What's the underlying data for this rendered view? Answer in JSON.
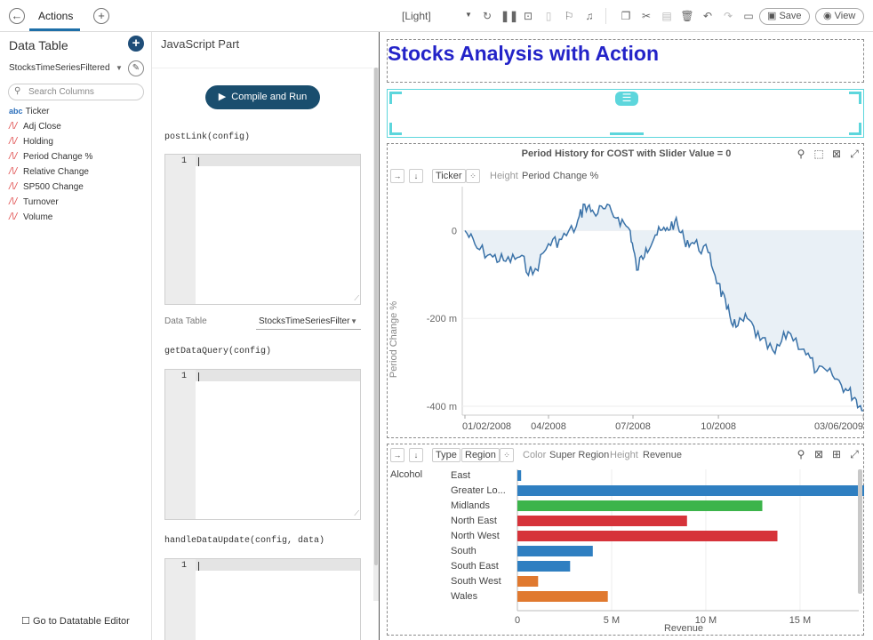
{
  "topbar": {
    "tab_label": "Actions",
    "theme_select": "[Light]",
    "save_label": "Save",
    "view_label": "View"
  },
  "left_panel": {
    "title": "Data Table",
    "table_select": "StocksTimeSeriesFiltered",
    "search_placeholder": "Search Columns",
    "columns": [
      {
        "type": "abc",
        "name": "Ticker"
      },
      {
        "type": "N",
        "name": "Adj Close"
      },
      {
        "type": "N",
        "name": "Holding"
      },
      {
        "type": "N",
        "name": "Period Change %"
      },
      {
        "type": "N",
        "name": "Relative Change"
      },
      {
        "type": "N",
        "name": "SP500 Change"
      },
      {
        "type": "N",
        "name": "Turnover"
      },
      {
        "type": "N",
        "name": "Volume"
      }
    ],
    "footer_link": "Go to Datatable Editor"
  },
  "js_panel": {
    "title": "JavaScript Part",
    "compile_button": "Compile and Run",
    "fn_postlink": "postLink(config)",
    "fn_getdataquery": "getDataQuery(config)",
    "fn_handledataupdate": "handleDataUpdate(config, data)",
    "line_number": "1",
    "data_table_label": "Data Table",
    "data_table_value": "StocksTimeSeriesFilter"
  },
  "dashboard": {
    "title": "Stocks Analysis with Action",
    "accent_color": "#2323c8"
  },
  "line_chart_panel": {
    "title": "Period History for COST with Slider Value = 0",
    "tag_ticker": "Ticker",
    "height_label": "Height",
    "height_value": "Period Change %",
    "y_axis_label": "Period Change %",
    "y_ticks": [
      "0",
      "-200 m",
      "-400 m"
    ],
    "x_ticks": [
      "01/02/2008",
      "04/2008",
      "07/2008",
      "10/2008",
      "03/06/2009"
    ]
  },
  "bar_chart_panel": {
    "tag_type": "Type",
    "tag_region": "Region",
    "color_label": "Color",
    "color_value": "Super Region",
    "height_label": "Height",
    "height_value": "Revenue",
    "group_label": "Alcohol",
    "x_axis_label": "Revenue",
    "x_ticks": [
      "0",
      "5 M",
      "10 M",
      "15 M"
    ]
  },
  "chart_data": [
    {
      "type": "area",
      "title": "Period History for COST with Slider Value = 0",
      "ylabel": "Period Change %",
      "ylim": [
        -0.41,
        0.1
      ],
      "x_range": [
        "2008-01-02",
        "2009-03-06"
      ],
      "series": [
        {
          "color": "#3a72a8",
          "points": [
            [
              "2008-01-02",
              0.0
            ],
            [
              "2008-01-15",
              -0.04
            ],
            [
              "2008-02-01",
              -0.06
            ],
            [
              "2008-02-15",
              -0.07
            ],
            [
              "2008-03-01",
              -0.06
            ],
            [
              "2008-03-15",
              -0.1
            ],
            [
              "2008-04-01",
              -0.03
            ],
            [
              "2008-04-15",
              -0.02
            ],
            [
              "2008-05-01",
              0.01
            ],
            [
              "2008-05-10",
              0.06
            ],
            [
              "2008-05-20",
              0.04
            ],
            [
              "2008-06-01",
              0.05
            ],
            [
              "2008-06-15",
              0.03
            ],
            [
              "2008-06-28",
              0.0
            ],
            [
              "2008-07-05",
              -0.09
            ],
            [
              "2008-07-15",
              -0.04
            ],
            [
              "2008-07-25",
              -0.01
            ],
            [
              "2008-08-05",
              0.0
            ],
            [
              "2008-08-15",
              0.02
            ],
            [
              "2008-08-25",
              -0.02
            ],
            [
              "2008-09-05",
              -0.03
            ],
            [
              "2008-09-20",
              -0.05
            ],
            [
              "2008-10-01",
              -0.12
            ],
            [
              "2008-10-10",
              -0.18
            ],
            [
              "2008-10-20",
              -0.22
            ],
            [
              "2008-11-01",
              -0.2
            ],
            [
              "2008-11-15",
              -0.25
            ],
            [
              "2008-12-01",
              -0.28
            ],
            [
              "2008-12-15",
              -0.23
            ],
            [
              "2009-01-01",
              -0.27
            ],
            [
              "2009-01-15",
              -0.32
            ],
            [
              "2009-02-01",
              -0.33
            ],
            [
              "2009-02-15",
              -0.36
            ],
            [
              "2009-02-25",
              -0.38
            ],
            [
              "2009-03-06",
              -0.41
            ]
          ]
        }
      ]
    },
    {
      "type": "bar",
      "orientation": "horizontal",
      "categories": [
        "East",
        "Greater Lo...",
        "Midlands",
        "North East",
        "North West",
        "South",
        "South East",
        "South West",
        "Wales"
      ],
      "values": [
        0.2,
        18.4,
        13.0,
        9.0,
        13.8,
        4.0,
        2.8,
        1.1,
        4.8
      ],
      "value_unit": "M",
      "colors": [
        "#2f7fc1",
        "#2f7fc1",
        "#3cb44b",
        "#d6333a",
        "#d6333a",
        "#2f7fc1",
        "#2f7fc1",
        "#e0792f",
        "#e0792f"
      ],
      "xlabel": "Revenue",
      "xlim": [
        0,
        18.4
      ]
    }
  ]
}
